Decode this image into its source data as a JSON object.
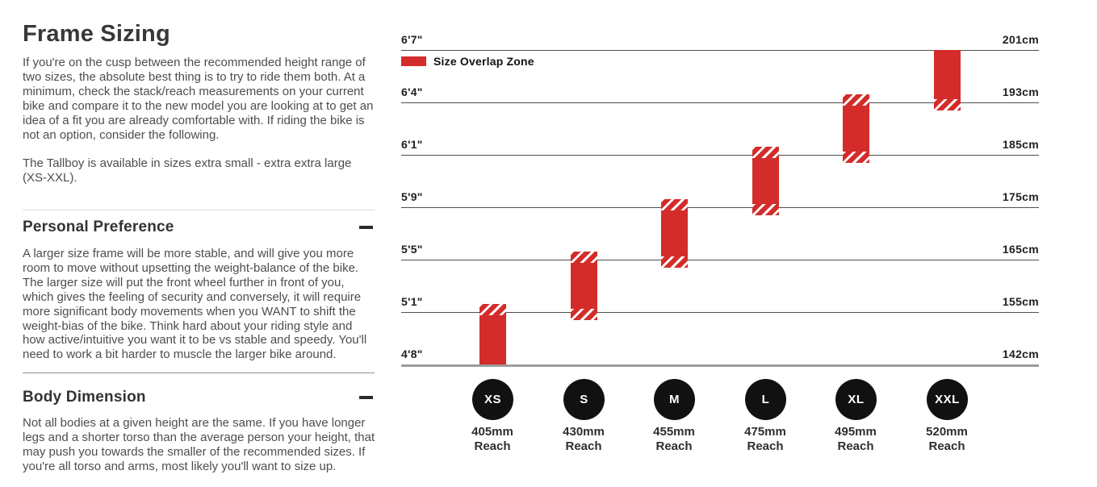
{
  "page": {
    "title": "Frame Sizing",
    "intro_p1": "If you're on the cusp between the recommended height range of two sizes, the absolute best thing is to try to ride them both. At a minimum, check the stack/reach measurements on your current bike and compare it to the new model you are looking at to get an idea of a fit you are already comfortable with. If riding the bike is not an option, consider the following.",
    "intro_p2": "The Tallboy is available in sizes extra small - extra extra large (XS-XXL).",
    "sections": [
      {
        "heading": "Personal Preference",
        "toggle_state": "expanded",
        "body": "A larger size frame will be more stable, and will give you more room to move without upsetting the weight-balance of the bike. The larger size will put the front wheel further in front of you, which gives the feeling of security and conversely, it will require more significant body movements when you WANT to shift the weight-bias of the bike. Think hard about your riding style and how active/intuitive you want it to be vs stable and speedy. You'll need to work a bit harder to muscle the larger bike around."
      },
      {
        "heading": "Body Dimension",
        "toggle_state": "expanded",
        "body": "Not all bodies at a given height are the same. If you have longer legs and a shorter torso than the average person your height, that may push you towards the smaller of the recommended sizes. If you're all torso and arms, most likely you'll want to size up."
      }
    ]
  },
  "chart_data": {
    "type": "bar",
    "title": "Frame Sizing chart: rider height vs frame size",
    "legend": "Size Overlap Zone",
    "axis_levels": [
      {
        "imperial": "6'7\"",
        "metric": "201cm",
        "cm": 201
      },
      {
        "imperial": "6'4\"",
        "metric": "193cm",
        "cm": 193
      },
      {
        "imperial": "6'1\"",
        "metric": "185cm",
        "cm": 185
      },
      {
        "imperial": "5'9\"",
        "metric": "175cm",
        "cm": 175
      },
      {
        "imperial": "5'5\"",
        "metric": "165cm",
        "cm": 165
      },
      {
        "imperial": "5'1\"",
        "metric": "155cm",
        "cm": 155
      },
      {
        "imperial": "4'8\"",
        "metric": "142cm",
        "cm": 142
      }
    ],
    "sizes": [
      {
        "label": "XS",
        "reach": "405mm",
        "caption": "Reach",
        "height_min_cm": 142,
        "height_max_cm": 155,
        "overlap_top": true,
        "overlap_bottom": false
      },
      {
        "label": "S",
        "reach": "430mm",
        "caption": "Reach",
        "height_min_cm": 155,
        "height_max_cm": 165,
        "overlap_top": true,
        "overlap_bottom": true
      },
      {
        "label": "M",
        "reach": "455mm",
        "caption": "Reach",
        "height_min_cm": 165,
        "height_max_cm": 175,
        "overlap_top": true,
        "overlap_bottom": true
      },
      {
        "label": "L",
        "reach": "475mm",
        "caption": "Reach",
        "height_min_cm": 175,
        "height_max_cm": 185,
        "overlap_top": true,
        "overlap_bottom": true
      },
      {
        "label": "XL",
        "reach": "495mm",
        "caption": "Reach",
        "height_min_cm": 185,
        "height_max_cm": 193,
        "overlap_top": true,
        "overlap_bottom": true
      },
      {
        "label": "XXL",
        "reach": "520mm",
        "caption": "Reach",
        "height_min_cm": 193,
        "height_max_cm": 201,
        "overlap_top": false,
        "overlap_bottom": true
      }
    ],
    "colors": {
      "bar_red": "#d32c2a",
      "circle_black": "#111111"
    },
    "layout_hints": {
      "grid": "horizontal lines",
      "legend_position": "top-left",
      "orientation": "vertical bars"
    }
  }
}
